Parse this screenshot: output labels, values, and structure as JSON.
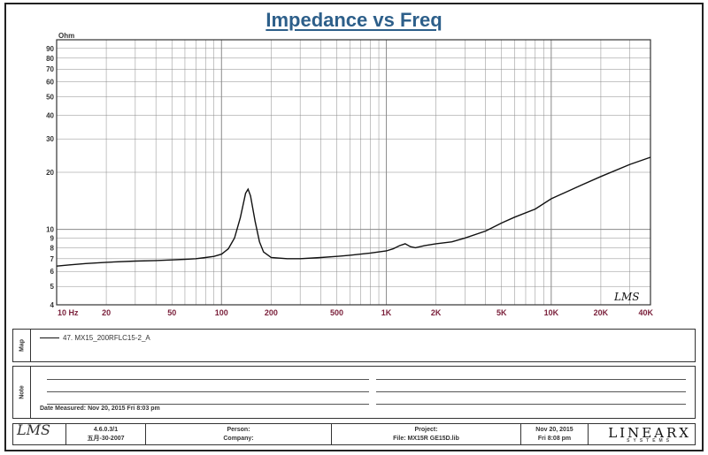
{
  "chart_data": {
    "type": "line",
    "title": "Impedance vs Freq",
    "ylabel": "Ohm",
    "xscale": "log",
    "yscale": "log",
    "xlim": [
      10,
      40000
    ],
    "ylim": [
      4,
      100
    ],
    "grid": true,
    "x_tick_labels": [
      "10 Hz",
      "20",
      "50",
      "100",
      "200",
      "500",
      "1K",
      "2K",
      "5K",
      "10K",
      "20K",
      "40K"
    ],
    "x_tick_values": [
      10,
      20,
      50,
      100,
      200,
      500,
      1000,
      2000,
      5000,
      10000,
      20000,
      40000
    ],
    "y_tick_labels": [
      "90",
      "80",
      "70",
      "60",
      "50",
      "40",
      "30",
      "20",
      "10",
      "9",
      "8",
      "7",
      "6",
      "5",
      "4"
    ],
    "y_tick_values": [
      90,
      80,
      70,
      60,
      50,
      40,
      30,
      20,
      10,
      9,
      8,
      7,
      6,
      5,
      4
    ],
    "series": [
      {
        "name": "47. MX15_200RFLC15-2_A",
        "x": [
          10,
          12,
          15,
          20,
          30,
          40,
          50,
          60,
          70,
          80,
          90,
          100,
          110,
          120,
          130,
          140,
          145,
          150,
          160,
          170,
          180,
          200,
          250,
          300,
          400,
          500,
          600,
          800,
          1000,
          1100,
          1200,
          1300,
          1400,
          1500,
          1700,
          2000,
          2500,
          3000,
          4000,
          5000,
          6000,
          8000,
          10000,
          15000,
          20000,
          30000,
          40000
        ],
        "y": [
          6.4,
          6.5,
          6.6,
          6.7,
          6.8,
          6.85,
          6.9,
          6.95,
          7.0,
          7.1,
          7.2,
          7.4,
          7.9,
          9.0,
          11.5,
          15.5,
          16.3,
          15.0,
          11.0,
          8.6,
          7.6,
          7.1,
          7.0,
          7.0,
          7.1,
          7.2,
          7.3,
          7.5,
          7.7,
          7.9,
          8.2,
          8.4,
          8.1,
          8.0,
          8.2,
          8.4,
          8.6,
          9.0,
          9.8,
          10.8,
          11.6,
          12.8,
          14.5,
          17.0,
          19.0,
          22.0,
          24.0
        ]
      }
    ]
  },
  "plot": {
    "logo_mark": "LMS",
    "line_color": "#111111",
    "grid_color": "#8a8a8a"
  },
  "map_section": {
    "label": "Map",
    "legend_entry": "47. MX15_200RFLC15-2_A"
  },
  "note_section": {
    "label": "Note",
    "date_measured": "Date Measured: Nov 20, 2015 Fri 8:03 pm"
  },
  "footer": {
    "logo": "LMS",
    "version": "4.6.0.3/1",
    "version_date": "五月-30-2007",
    "person_label": "Person:",
    "company_label": "Company:",
    "project_label": "Project:",
    "file_label": "File: MX15R GE15D.lib",
    "date": "Nov 20, 2015",
    "time": "Fri 8:08 pm",
    "brand": "LINEARX",
    "brand_sub": "SYSTEMS"
  }
}
